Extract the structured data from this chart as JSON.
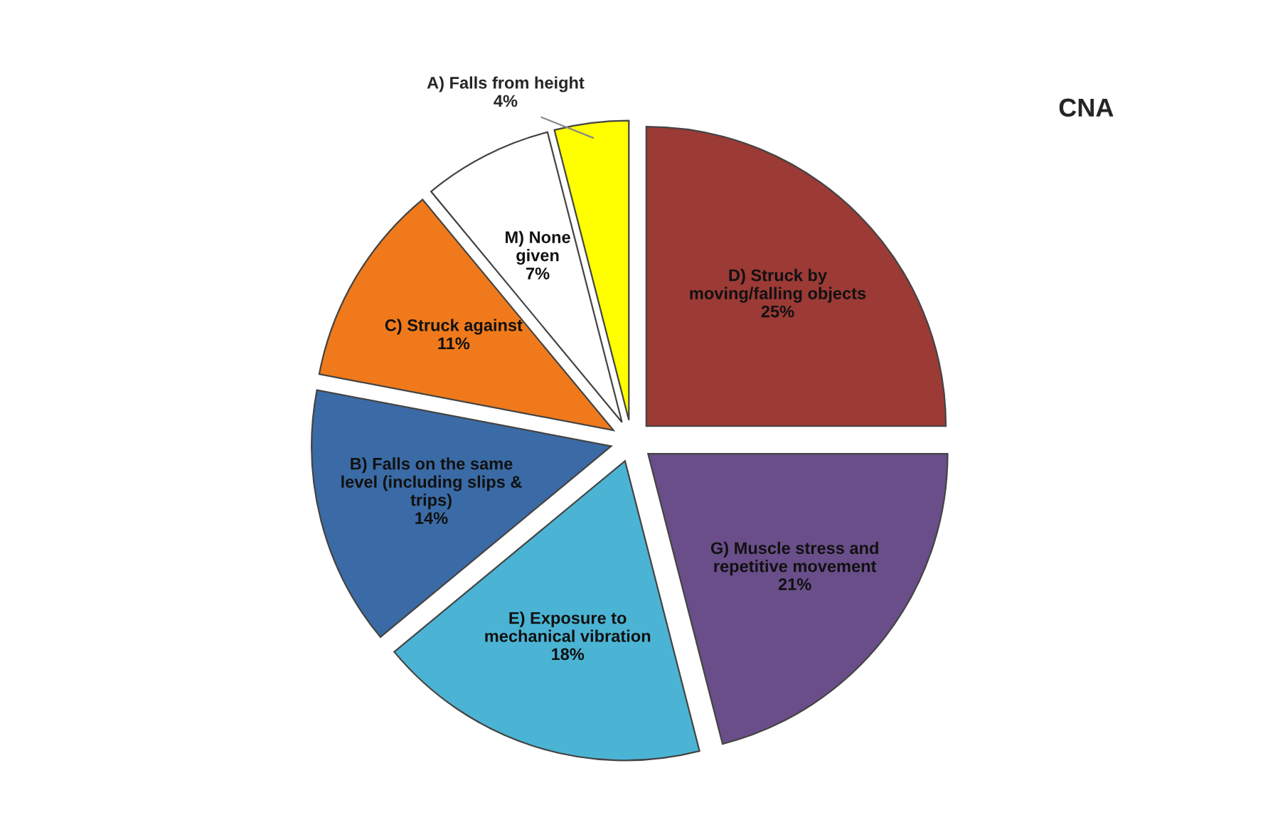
{
  "chart_data": {
    "type": "pie",
    "title": "CNA",
    "categories": [
      "D) Struck by\nmoving/falling objects",
      "G) Muscle stress and\nrepetitive movement",
      "E) Exposure to\nmechanical vibration",
      "B) Falls on the same\nlevel (including slips &\ntrips)",
      "C) Struck against",
      "M) None\ngiven",
      "A) Falls from height"
    ],
    "values": [
      25,
      21,
      18,
      14,
      11,
      7,
      4
    ],
    "value_labels": [
      "25%",
      "21%",
      "18%",
      "14%",
      "11%",
      "7%",
      "4%"
    ],
    "colors": [
      "#9c3a36",
      "#6a4e8a",
      "#4bb4d4",
      "#3b6ba6",
      "#f07a1b",
      "#ffffff",
      "#ffff00"
    ]
  }
}
